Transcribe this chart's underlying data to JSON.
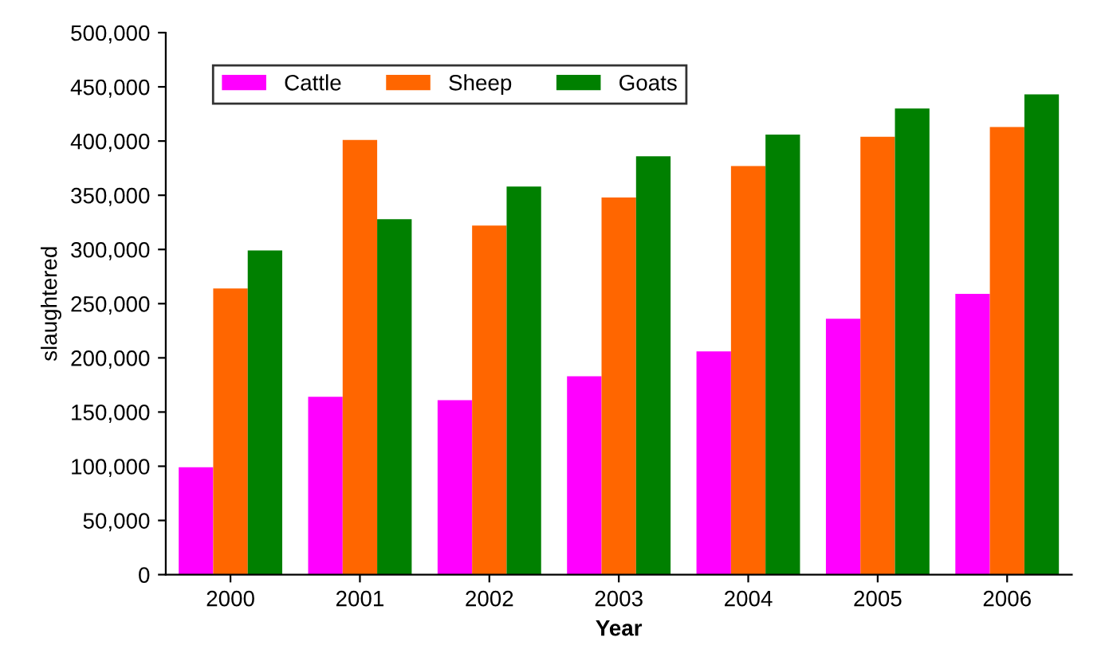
{
  "chart_data": {
    "type": "bar",
    "xlabel": "Year",
    "ylabel": "slaughtered",
    "categories": [
      "2000",
      "2001",
      "2002",
      "2003",
      "2004",
      "2005",
      "2006"
    ],
    "series": [
      {
        "name": "Cattle",
        "color": "#ff00ff",
        "values": [
          99000,
          164000,
          161000,
          183000,
          206000,
          236000,
          259000
        ]
      },
      {
        "name": "Sheep",
        "color": "#ff6600",
        "values": [
          264000,
          401000,
          322000,
          348000,
          377000,
          404000,
          413000
        ]
      },
      {
        "name": "Goats",
        "color": "#008000",
        "values": [
          299000,
          328000,
          358000,
          386000,
          406000,
          430000,
          443000
        ]
      }
    ],
    "ylim": [
      0,
      500000
    ],
    "yticks": [
      {
        "value": 0,
        "label": "0"
      },
      {
        "value": 50000,
        "label": "50,000"
      },
      {
        "value": 100000,
        "label": "100,000"
      },
      {
        "value": 150000,
        "label": "150,000"
      },
      {
        "value": 200000,
        "label": "200,000"
      },
      {
        "value": 250000,
        "label": "250,000"
      },
      {
        "value": 300000,
        "label": "300,000"
      },
      {
        "value": 350000,
        "label": "350,000"
      },
      {
        "value": 400000,
        "label": "400,000"
      },
      {
        "value": 450000,
        "label": "450,000"
      },
      {
        "value": 500000,
        "label": "500,000"
      }
    ],
    "legend": "top left",
    "grid": false
  }
}
